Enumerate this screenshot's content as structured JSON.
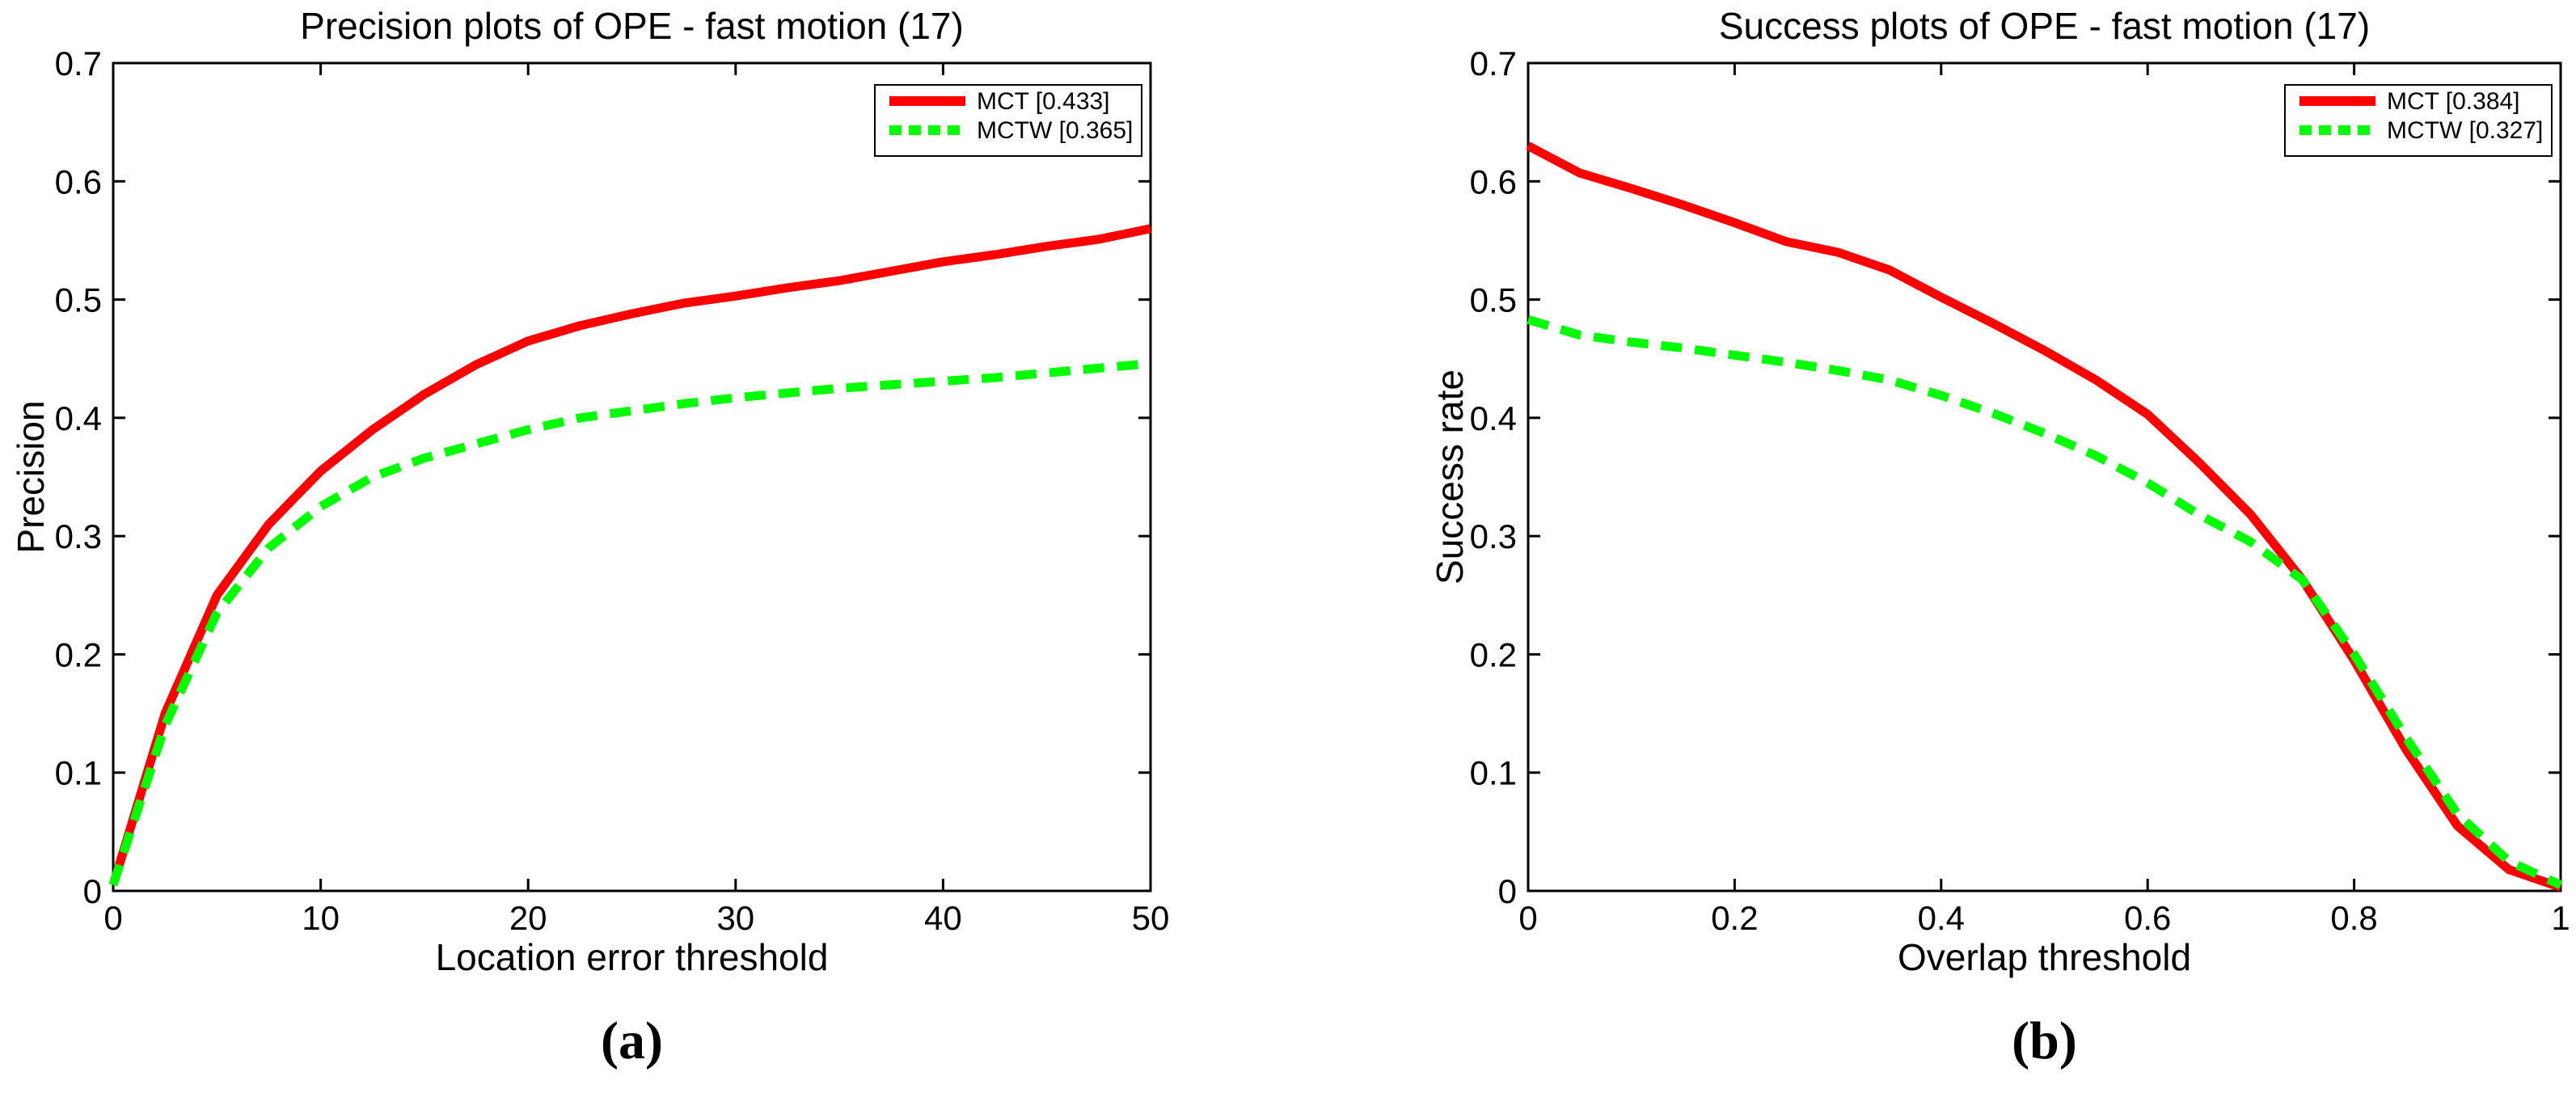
{
  "figure": {
    "background": "#ffffff",
    "axis_color": "#000000",
    "colors": {
      "mct": "#ff0000",
      "mctw": "#00ff00"
    }
  },
  "chart_data": [
    {
      "type": "line",
      "id": "precision-ope",
      "title": "Precision plots of OPE - fast motion (17)",
      "xlabel": "Location error threshold",
      "ylabel": "Precision",
      "caption": "(a)",
      "xlim": [
        0,
        50
      ],
      "ylim": [
        0,
        0.7
      ],
      "xticks": [
        0,
        10,
        20,
        30,
        40,
        50
      ],
      "xtick_labels": [
        "0",
        "10",
        "20",
        "30",
        "40",
        "50"
      ],
      "yticks": [
        0,
        0.1,
        0.2,
        0.3,
        0.4,
        0.5,
        0.6,
        0.7
      ],
      "ytick_labels": [
        "0",
        "0.1",
        "0.2",
        "0.3",
        "0.4",
        "0.5",
        "0.6",
        "0.7"
      ],
      "grid": false,
      "legend_position": "top-right",
      "series": [
        {
          "name": "MCT",
          "score": 0.433,
          "legend_label": "MCT [0.433]",
          "color": "#ff0000",
          "line_style": "solid",
          "x": [
            0,
            2.5,
            5,
            7.5,
            10,
            12.5,
            15,
            17.5,
            20,
            22.5,
            25,
            27.5,
            30,
            32.5,
            35,
            37.5,
            40,
            42.5,
            45,
            47.5,
            50
          ],
          "y": [
            0.005,
            0.15,
            0.25,
            0.31,
            0.355,
            0.39,
            0.42,
            0.445,
            0.465,
            0.478,
            0.488,
            0.497,
            0.503,
            0.51,
            0.516,
            0.524,
            0.532,
            0.538,
            0.545,
            0.551,
            0.56
          ]
        },
        {
          "name": "MCTW",
          "score": 0.365,
          "legend_label": "MCTW [0.365]",
          "color": "#00ff00",
          "line_style": "dashed",
          "x": [
            0,
            2.5,
            5,
            7.5,
            10,
            12.5,
            15,
            17.5,
            20,
            22.5,
            25,
            27.5,
            30,
            32.5,
            35,
            37.5,
            40,
            42.5,
            45,
            47.5,
            50
          ],
          "y": [
            0.005,
            0.14,
            0.235,
            0.29,
            0.325,
            0.35,
            0.366,
            0.378,
            0.39,
            0.4,
            0.406,
            0.412,
            0.417,
            0.421,
            0.425,
            0.428,
            0.431,
            0.434,
            0.438,
            0.442,
            0.446
          ]
        }
      ]
    },
    {
      "type": "line",
      "id": "success-ope",
      "title": "Success plots of OPE - fast motion (17)",
      "xlabel": "Overlap threshold",
      "ylabel": "Success rate",
      "caption": "(b)",
      "xlim": [
        0,
        1
      ],
      "ylim": [
        0,
        0.7
      ],
      "xticks": [
        0,
        0.2,
        0.4,
        0.6,
        0.8,
        1
      ],
      "xtick_labels": [
        "0",
        "0.2",
        "0.4",
        "0.6",
        "0.8",
        "1"
      ],
      "yticks": [
        0,
        0.1,
        0.2,
        0.3,
        0.4,
        0.5,
        0.6,
        0.7
      ],
      "ytick_labels": [
        "0",
        "0.1",
        "0.2",
        "0.3",
        "0.4",
        "0.5",
        "0.6",
        "0.7"
      ],
      "grid": false,
      "legend_position": "top-right",
      "series": [
        {
          "name": "MCT",
          "score": 0.384,
          "legend_label": "MCT [0.384]",
          "color": "#ff0000",
          "line_style": "solid",
          "x": [
            0,
            0.05,
            0.1,
            0.15,
            0.2,
            0.25,
            0.3,
            0.35,
            0.4,
            0.45,
            0.5,
            0.55,
            0.6,
            0.65,
            0.7,
            0.75,
            0.8,
            0.85,
            0.9,
            0.95,
            1
          ],
          "y": [
            0.63,
            0.607,
            0.594,
            0.58,
            0.565,
            0.549,
            0.54,
            0.525,
            0.502,
            0.48,
            0.457,
            0.432,
            0.403,
            0.362,
            0.318,
            0.263,
            0.195,
            0.12,
            0.055,
            0.018,
            0.003
          ]
        },
        {
          "name": "MCTW",
          "score": 0.327,
          "legend_label": "MCTW [0.327]",
          "color": "#00ff00",
          "line_style": "dashed",
          "x": [
            0,
            0.05,
            0.1,
            0.15,
            0.2,
            0.25,
            0.3,
            0.35,
            0.4,
            0.45,
            0.5,
            0.55,
            0.6,
            0.65,
            0.7,
            0.75,
            0.8,
            0.85,
            0.9,
            0.95,
            1
          ],
          "y": [
            0.483,
            0.47,
            0.464,
            0.459,
            0.453,
            0.447,
            0.44,
            0.432,
            0.419,
            0.404,
            0.387,
            0.368,
            0.345,
            0.318,
            0.295,
            0.263,
            0.2,
            0.13,
            0.065,
            0.025,
            0.005
          ]
        }
      ]
    }
  ]
}
